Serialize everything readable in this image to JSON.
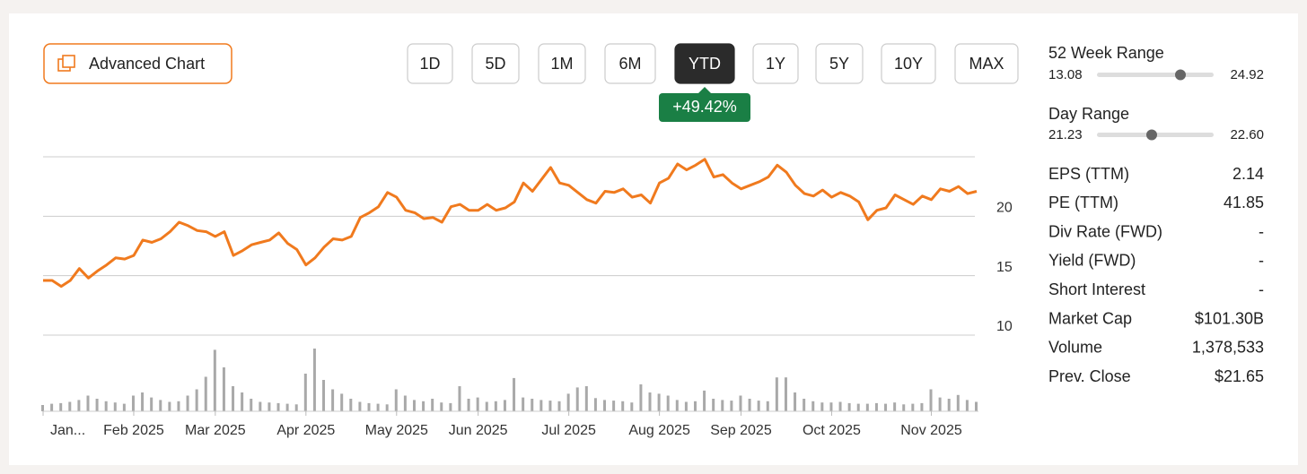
{
  "toolbar": {
    "advanced_chart": "Advanced Chart",
    "ranges": [
      "1D",
      "5D",
      "1M",
      "6M",
      "YTD",
      "1Y",
      "5Y",
      "10Y",
      "MAX"
    ],
    "selected": "YTD",
    "change": "+49.42%"
  },
  "chart_data": {
    "type": "line",
    "color": "#f07a1e",
    "volume_color": "#a9a9a9",
    "ylim": [
      10,
      25
    ],
    "yticks": [
      10,
      15,
      20
    ],
    "categories": [
      "Jan...",
      null,
      null,
      null,
      null,
      null,
      null,
      null,
      null,
      null,
      "Feb 2025",
      null,
      null,
      null,
      null,
      null,
      null,
      null,
      null,
      "Mar 2025",
      null,
      null,
      null,
      null,
      null,
      null,
      null,
      null,
      null,
      "Apr 2025",
      null,
      null,
      null,
      null,
      null,
      null,
      null,
      null,
      null,
      "May 2025",
      null,
      null,
      null,
      null,
      null,
      null,
      null,
      null,
      "Jun 2025",
      null,
      null,
      null,
      null,
      null,
      null,
      null,
      null,
      null,
      "Jul 2025",
      null,
      null,
      null,
      null,
      null,
      null,
      null,
      null,
      null,
      "Aug 2025",
      null,
      null,
      null,
      null,
      null,
      null,
      null,
      null,
      "Sep 2025",
      null,
      null,
      null,
      null,
      null,
      null,
      null,
      null,
      null,
      "Oct 2025",
      null,
      null,
      null,
      null,
      null,
      null,
      null,
      null,
      null,
      null,
      "Nov 2025",
      null,
      null,
      null,
      null,
      null
    ],
    "values": [
      14.6,
      14.6,
      14.1,
      14.6,
      15.6,
      14.8,
      15.4,
      15.9,
      16.5,
      16.4,
      16.7,
      18.0,
      17.8,
      18.1,
      18.7,
      19.5,
      19.2,
      18.8,
      18.7,
      18.3,
      18.7,
      16.7,
      17.1,
      17.6,
      17.8,
      18.0,
      18.6,
      17.7,
      17.2,
      15.9,
      16.5,
      17.4,
      18.1,
      18.0,
      18.3,
      19.9,
      20.3,
      20.8,
      22.0,
      21.6,
      20.5,
      20.3,
      19.8,
      19.9,
      19.5,
      20.8,
      21.0,
      20.5,
      20.5,
      21.0,
      20.5,
      20.7,
      21.2,
      22.8,
      22.1,
      23.1,
      24.1,
      22.8,
      22.6,
      22.0,
      21.4,
      21.1,
      22.1,
      22.0,
      22.3,
      21.6,
      21.8,
      21.1,
      22.8,
      23.2,
      24.4,
      23.9,
      24.3,
      24.8,
      23.3,
      23.5,
      22.8,
      22.3,
      22.6,
      22.9,
      23.3,
      24.3,
      23.7,
      22.6,
      21.9,
      21.7,
      22.2,
      21.6,
      22.0,
      21.7,
      21.2,
      19.7,
      20.5,
      20.7,
      21.8,
      21.4,
      21.0,
      21.7,
      21.4,
      22.3,
      22.1,
      22.5,
      21.9,
      22.1
    ],
    "volume": [
      1,
      1.2,
      1.3,
      1.5,
      1.8,
      2.5,
      2,
      1.6,
      1.4,
      1.2,
      2.5,
      3,
      2.2,
      1.8,
      1.5,
      1.6,
      2.5,
      3.5,
      5.5,
      9.8,
      7,
      4,
      3,
      2,
      1.5,
      1.4,
      1.3,
      1.2,
      1.1,
      6,
      10,
      5,
      3.5,
      2.8,
      2,
      1.5,
      1.3,
      1.2,
      1.1,
      3.5,
      2.5,
      1.8,
      1.6,
      2,
      1.4,
      1.3,
      4,
      2,
      2.2,
      1.5,
      1.6,
      1.8,
      5.3,
      2.2,
      2,
      1.8,
      1.7,
      1.6,
      2.8,
      3.8,
      4,
      2.1,
      1.8,
      1.7,
      1.6,
      1.4,
      4.3,
      3,
      2.8,
      2.5,
      1.8,
      1.5,
      1.6,
      3.3,
      2,
      1.8,
      1.7,
      2.5,
      2,
      1.7,
      1.6,
      5.4,
      5.4,
      3,
      2,
      1.6,
      1.4,
      1.4,
      1.5,
      1.3,
      1.2,
      1.2,
      1.3,
      1.2,
      1.4,
      1.1,
      1.2,
      1.3,
      3.5,
      2.2,
      2,
      2.6,
      1.8,
      1.5
    ]
  },
  "stats": {
    "week52": {
      "label": "52 Week Range",
      "low": "13.08",
      "high": "24.92"
    },
    "day": {
      "label": "Day Range",
      "low": "21.23",
      "high": "22.60"
    },
    "rows": [
      {
        "label": "EPS (TTM)",
        "value": "2.14"
      },
      {
        "label": "PE (TTM)",
        "value": "41.85"
      },
      {
        "label": "Div Rate (FWD)",
        "value": "-"
      },
      {
        "label": "Yield (FWD)",
        "value": "-"
      },
      {
        "label": "Short Interest",
        "value": "-"
      },
      {
        "label": "Market Cap",
        "value": "$101.30B"
      },
      {
        "label": "Volume",
        "value": "1,378,533"
      },
      {
        "label": "Prev. Close",
        "value": "$21.65"
      }
    ]
  }
}
